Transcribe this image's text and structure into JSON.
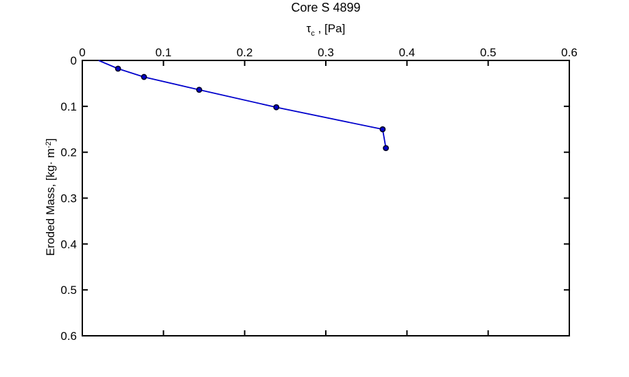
{
  "figure": {
    "title": "Core S 4899",
    "xlabel": {
      "tau": "τ",
      "sub": "c",
      "rest": " , [Pa]"
    },
    "ylabel": {
      "main": "Eroded Mass, [kg· m",
      "sup": "-2",
      "end": "]"
    }
  },
  "chart_data": {
    "type": "line",
    "title": "Core S 4899",
    "xlabel": "tau_c , [Pa]",
    "ylabel": "Eroded Mass, [kg·m^-2]",
    "x_axis_location": "top",
    "y_direction": "reversed",
    "grid": false,
    "legend": null,
    "xlim": [
      0,
      0.6
    ],
    "ylim": [
      0,
      0.6
    ],
    "xtick_values": [
      0,
      0.1,
      0.2,
      0.3,
      0.4,
      0.5,
      0.6
    ],
    "xtick_labels": [
      "0",
      "0.1",
      "0.2",
      "0.3",
      "0.4",
      "0.5",
      "0.6"
    ],
    "ytick_values": [
      0,
      0.1,
      0.2,
      0.3,
      0.4,
      0.5,
      0.6
    ],
    "ytick_labels": [
      "0",
      "0.1",
      "0.2",
      "0.3",
      "0.4",
      "0.5",
      "0.6"
    ],
    "series": [
      {
        "name": "eroded-mass-vs-critical-shear-stress",
        "line_color": "#0000CC",
        "marker": "filled-circle",
        "marker_fill": "#0000CC",
        "marker_edge": "#000022",
        "points": [
          {
            "x": 0.02,
            "y": 0.0,
            "marker": false
          },
          {
            "x": 0.044,
            "y": 0.018,
            "marker": true
          },
          {
            "x": 0.076,
            "y": 0.036,
            "marker": true
          },
          {
            "x": 0.144,
            "y": 0.064,
            "marker": true
          },
          {
            "x": 0.239,
            "y": 0.102,
            "marker": true
          },
          {
            "x": 0.37,
            "y": 0.15,
            "marker": true
          },
          {
            "x": 0.374,
            "y": 0.191,
            "marker": true
          }
        ]
      }
    ]
  },
  "colors": {
    "background": "#FFFFFF",
    "axis": "#000000",
    "text": "#000000",
    "line": "#0000CC"
  }
}
